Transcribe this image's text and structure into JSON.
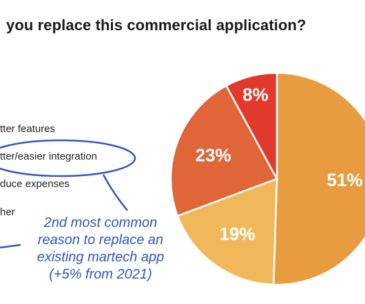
{
  "chart_data": {
    "type": "pie",
    "title": "you replace this commercial application?",
    "legend": [
      "tter features",
      "tter/easier integration",
      "duce expenses",
      "her"
    ],
    "slices": [
      {
        "label": "51%",
        "value": 51,
        "color": "#e89c3f"
      },
      {
        "label": "19%",
        "value": 19,
        "color": "#f0b85b"
      },
      {
        "label": "23%",
        "value": 23,
        "color": "#e0663a"
      },
      {
        "label": "8%",
        "value": 8,
        "color": "#e13a2c"
      }
    ],
    "annotation": [
      "2nd most common",
      "reason to replace an",
      "existing martech app",
      "(+5% from 2021)"
    ]
  },
  "colors": {
    "annotation": "#2f56c7",
    "slice_label": "#ffffff"
  }
}
